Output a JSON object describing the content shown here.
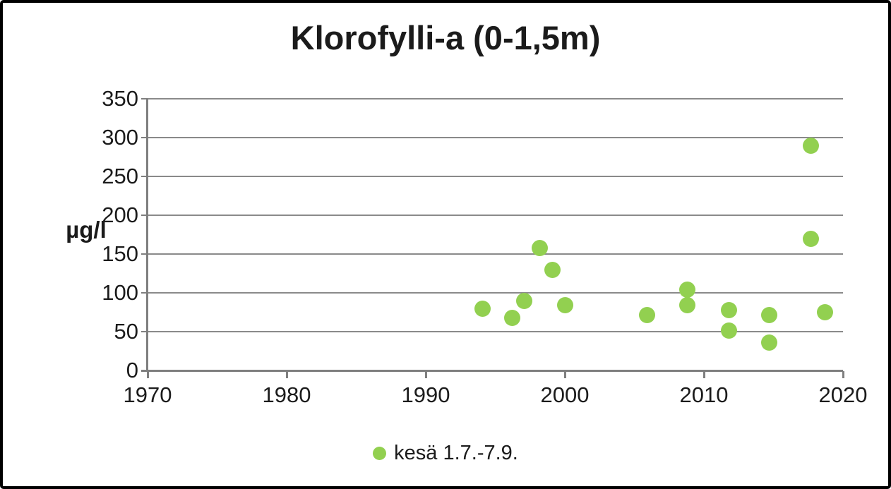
{
  "chart": {
    "title": "Klorofylli-a (0-1,5m)",
    "y_axis_title": "µg/l"
  },
  "chart_data": {
    "type": "scatter",
    "title": "Klorofylli-a (0-1,5m)",
    "xlabel": "",
    "ylabel": "µg/l",
    "xlim": [
      1970,
      2020
    ],
    "ylim": [
      0,
      350
    ],
    "x_ticks": [
      1970,
      1980,
      1990,
      2000,
      2010,
      2020
    ],
    "y_ticks": [
      0,
      50,
      100,
      150,
      200,
      250,
      300,
      350
    ],
    "grid": "horizontal",
    "legend_position": "bottom",
    "series": [
      {
        "name": "kesä 1.7.-7.9.",
        "marker_color": "#92d050",
        "points": [
          {
            "x": 1994.1,
            "y": 80
          },
          {
            "x": 1996.2,
            "y": 68
          },
          {
            "x": 1997.1,
            "y": 90
          },
          {
            "x": 1998.2,
            "y": 158
          },
          {
            "x": 1999.1,
            "y": 130
          },
          {
            "x": 2000.0,
            "y": 84
          },
          {
            "x": 2005.9,
            "y": 71
          },
          {
            "x": 2008.8,
            "y": 104
          },
          {
            "x": 2008.8,
            "y": 84
          },
          {
            "x": 2011.8,
            "y": 78
          },
          {
            "x": 2011.8,
            "y": 51
          },
          {
            "x": 2014.7,
            "y": 71
          },
          {
            "x": 2014.7,
            "y": 36
          },
          {
            "x": 2017.7,
            "y": 290
          },
          {
            "x": 2017.7,
            "y": 170
          },
          {
            "x": 2018.7,
            "y": 75
          }
        ]
      }
    ],
    "colors": {
      "marker": "#92d050",
      "gridline": "#8a8a8a",
      "axis": "#7f7f7f",
      "text": "#1b1b1b",
      "background": "#ffffff",
      "border": "#000000"
    }
  }
}
